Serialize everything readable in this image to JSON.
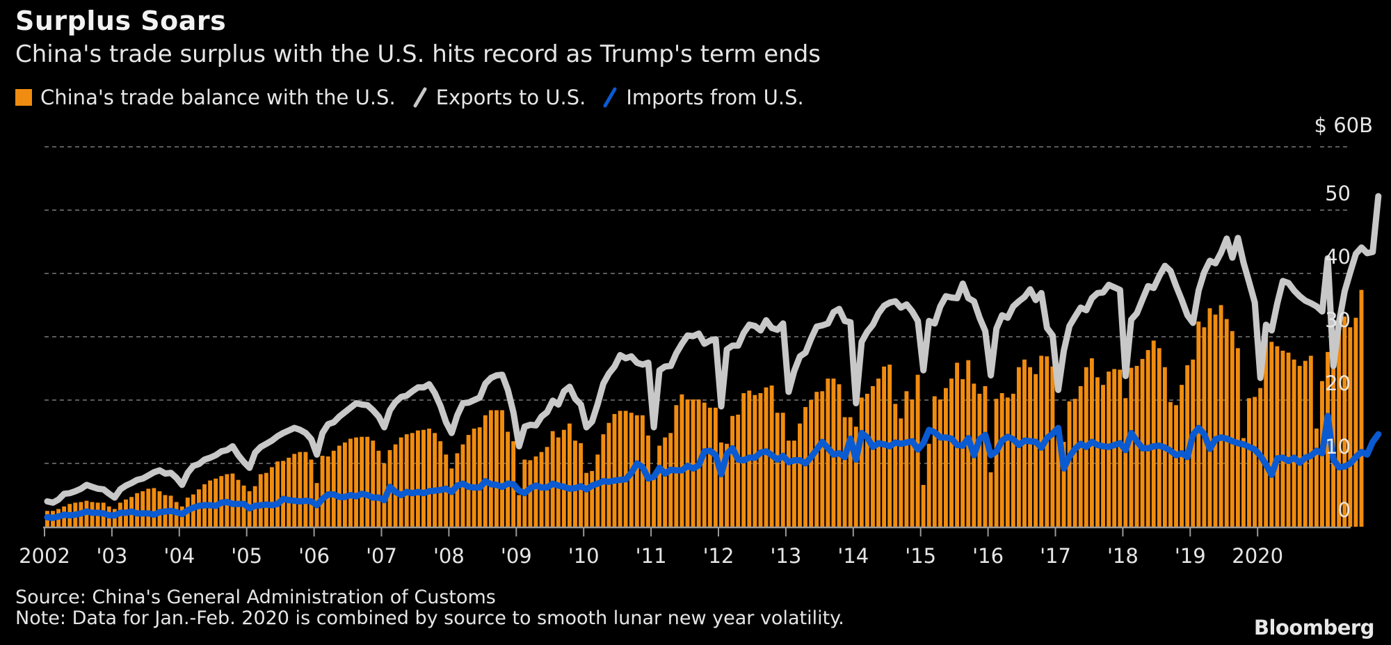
{
  "title": "Surplus Soars",
  "subtitle": "China's trade surplus with the U.S. hits record as Trump's term ends",
  "legend": [
    {
      "label": "China's trade balance with the U.S.",
      "kind": "bar",
      "color": "#f08c10"
    },
    {
      "label": "Exports to U.S.",
      "kind": "line",
      "color": "#c8c8c8"
    },
    {
      "label": "Imports from U.S.",
      "kind": "line",
      "color": "#0a5ad2"
    }
  ],
  "unit_label": "$ 60B",
  "source": "Source: China's General Administration of Customs",
  "note": "Note: Data for Jan.-Feb. 2020 is combined by source to smooth lunar new year volatility.",
  "logo": "Bloomberg",
  "chart_data": {
    "type": "bar",
    "title": "Surplus Soars",
    "subtitle": "China's trade surplus with the U.S. hits record as Trump's term ends",
    "xlabel": "",
    "ylabel": "$B",
    "ylim": [
      0,
      60
    ],
    "yticks": [
      0,
      10,
      20,
      30,
      40,
      50,
      60
    ],
    "ytick_labels": [
      "0",
      "10",
      "20",
      "30",
      "40",
      "50",
      "$ 60B"
    ],
    "grid": true,
    "legend_position": "top-left",
    "x_start": "2002-01",
    "x_end": "2020-11",
    "frequency": "monthly",
    "xtick_labels": [
      "2002",
      "'03",
      "'04",
      "'05",
      "'06",
      "'07",
      "'08",
      "'09",
      "'10",
      "'11",
      "'12",
      "'13",
      "'14",
      "'15",
      "'16",
      "'17",
      "'18",
      "'19",
      "2020"
    ],
    "series": [
      {
        "name": "China's trade balance with the U.S.",
        "type": "bar",
        "color": "#f08c10",
        "values": [
          2.5,
          2.5,
          2.8,
          3.2,
          3.6,
          3.8,
          3.9,
          4.1,
          3.9,
          3.8,
          3.8,
          3.2,
          2.8,
          3.8,
          4.3,
          4.7,
          5.3,
          5.6,
          6.0,
          6.1,
          5.6,
          5.0,
          4.9,
          3.9,
          3.2,
          4.6,
          5.1,
          5.9,
          6.7,
          7.3,
          7.6,
          8.0,
          8.3,
          8.4,
          7.4,
          6.5,
          5.6,
          6.4,
          8.3,
          8.5,
          9.4,
          10.3,
          10.4,
          10.9,
          11.5,
          11.8,
          11.8,
          10.6,
          6.9,
          11.2,
          11.1,
          12.0,
          12.8,
          13.3,
          13.9,
          14.1,
          14.2,
          14.2,
          13.6,
          12.0,
          10.0,
          12.1,
          13.0,
          14.1,
          14.6,
          14.8,
          15.2,
          15.3,
          15.5,
          14.8,
          13.5,
          11.4,
          9.2,
          11.6,
          13.0,
          14.5,
          15.5,
          15.7,
          17.6,
          18.4,
          18.4,
          18.4,
          15.0,
          13.5,
          5.0,
          10.6,
          10.5,
          11.1,
          11.8,
          12.6,
          15.1,
          14.1,
          15.3,
          16.3,
          13.6,
          13.2,
          8.5,
          8.8,
          11.4,
          14.6,
          16.4,
          17.8,
          18.3,
          18.3,
          18.0,
          17.6,
          17.6,
          14.4,
          8.0,
          12.8,
          14.1,
          14.8,
          19.2,
          20.9,
          20.1,
          20.1,
          20.1,
          19.6,
          18.8,
          18.8,
          13.3,
          13.1,
          17.5,
          17.7,
          21.1,
          21.5,
          20.8,
          21.1,
          22.0,
          22.3,
          18.0,
          18.0,
          13.6,
          13.6,
          16.3,
          18.9,
          20.0,
          21.3,
          21.4,
          23.4,
          23.4,
          22.5,
          17.3,
          17.3,
          15.8,
          20.4,
          21.0,
          22.2,
          23.4,
          25.3,
          25.6,
          19.4,
          17.1,
          21.4,
          20.1,
          24.0,
          6.6,
          13.1,
          20.6,
          20.1,
          21.9,
          23.4,
          25.9,
          23.3,
          26.3,
          22.6,
          21.0,
          22.2,
          8.6,
          20.2,
          21.1,
          20.4,
          21.0,
          25.2,
          26.4,
          25.2,
          24.1,
          27.0,
          26.9,
          25.3,
          14.2,
          13.4,
          19.8,
          20.2,
          22.2,
          25.2,
          26.6,
          23.6,
          22.4,
          24.5,
          24.9,
          24.8,
          20.3,
          25.1,
          25.4,
          26.5,
          27.9,
          29.4,
          28.2,
          25.2,
          19.7,
          19.2,
          22.4,
          25.5,
          26.4,
          32.4,
          31.5,
          34.5,
          33.5,
          35.0,
          32.8,
          30.9,
          28.2,
          14.0,
          20.3,
          20.5,
          21.9,
          30.5,
          29.2,
          28.5,
          27.8,
          27.5,
          26.4,
          25.4,
          26.2,
          27.0,
          15.5,
          23.0,
          27.6,
          29.5,
          31.2,
          33.2,
          31.5,
          33.0,
          37.4
        ]
      },
      {
        "name": "Exports to U.S.",
        "type": "line",
        "color": "#c8c8c8",
        "values": [
          4.0,
          3.8,
          4.3,
          5.2,
          5.3,
          5.6,
          6.0,
          6.6,
          6.3,
          6.0,
          5.9,
          5.2,
          4.6,
          5.9,
          6.5,
          6.9,
          7.4,
          7.6,
          8.1,
          8.6,
          8.9,
          8.4,
          8.5,
          7.7,
          6.6,
          8.5,
          9.6,
          9.9,
          10.6,
          10.9,
          11.3,
          11.9,
          12.1,
          12.7,
          11.3,
          10.2,
          9.3,
          11.7,
          12.6,
          13.1,
          13.6,
          14.3,
          14.8,
          15.2,
          15.6,
          15.3,
          14.8,
          13.8,
          11.4,
          14.8,
          16.2,
          16.5,
          17.4,
          18.1,
          18.8,
          19.5,
          19.3,
          19.2,
          18.4,
          17.4,
          15.7,
          18.4,
          19.7,
          20.5,
          20.7,
          21.4,
          22.0,
          22.0,
          22.5,
          21.1,
          19.1,
          16.5,
          14.8,
          17.6,
          19.5,
          19.6,
          20.0,
          20.4,
          22.6,
          23.5,
          23.9,
          24.0,
          21.6,
          18.0,
          12.7,
          15.8,
          16.1,
          16.0,
          17.4,
          18.1,
          19.9,
          19.3,
          21.4,
          22.1,
          20.2,
          19.3,
          15.7,
          16.6,
          19.4,
          22.6,
          24.2,
          25.3,
          27.1,
          26.6,
          26.9,
          25.9,
          25.6,
          25.9,
          15.7,
          24.7,
          25.3,
          25.4,
          27.4,
          28.9,
          30.2,
          30.1,
          30.5,
          28.9,
          29.4,
          29.6,
          19.0,
          28.0,
          28.6,
          28.6,
          30.6,
          31.9,
          31.7,
          31.0,
          32.6,
          31.4,
          31.1,
          32.1,
          21.3,
          24.6,
          26.9,
          27.5,
          29.7,
          31.6,
          31.8,
          32.1,
          33.9,
          34.4,
          32.5,
          32.3,
          19.5,
          29.2,
          30.8,
          31.9,
          33.7,
          34.9,
          35.4,
          35.6,
          34.6,
          35.1,
          34.0,
          32.5,
          24.7,
          32.5,
          32.1,
          34.8,
          36.4,
          36.2,
          36.1,
          38.4,
          36.1,
          35.6,
          33.0,
          30.9,
          23.9,
          31.3,
          33.4,
          33.0,
          34.8,
          35.6,
          36.3,
          37.5,
          35.8,
          36.9,
          31.4,
          30.2,
          21.6,
          27.8,
          31.7,
          33.2,
          34.6,
          34.2,
          36.1,
          36.9,
          37.0,
          38.2,
          37.8,
          37.4,
          23.8,
          32.7,
          33.7,
          35.9,
          38.0,
          37.7,
          39.6,
          41.2,
          40.4,
          38.0,
          35.8,
          33.4,
          32.2,
          37.3,
          40.2,
          42.0,
          41.6,
          43.3,
          45.5,
          42.5,
          45.6,
          41.7,
          38.6,
          35.4,
          23.5,
          31.9,
          31.0,
          35.3,
          38.8,
          38.5,
          37.3,
          36.4,
          35.7,
          35.3,
          34.8,
          34.0,
          42.4,
          25.4,
          32.3,
          37.2,
          40.2,
          43.1,
          44.1,
          43.2,
          43.4,
          52.2
        ]
      },
      {
        "name": "Imports from U.S.",
        "type": "line",
        "color": "#0a5ad2",
        "values": [
          1.5,
          1.4,
          1.6,
          1.9,
          1.8,
          1.9,
          2.1,
          2.4,
          2.2,
          2.2,
          2.1,
          1.8,
          1.8,
          2.2,
          2.2,
          2.4,
          2.1,
          2.1,
          2.1,
          1.9,
          2.3,
          2.4,
          2.5,
          2.3,
          2.0,
          2.6,
          3.0,
          3.3,
          3.4,
          3.4,
          3.3,
          3.8,
          3.9,
          3.6,
          3.6,
          3.6,
          2.9,
          3.3,
          3.4,
          3.5,
          3.4,
          3.6,
          4.4,
          4.2,
          4.1,
          4.0,
          4.1,
          4.0,
          3.4,
          4.4,
          5.1,
          5.1,
          4.7,
          4.7,
          5.0,
          4.8,
          5.2,
          5.0,
          4.6,
          4.6,
          4.2,
          6.3,
          5.5,
          5.0,
          5.5,
          5.3,
          5.5,
          5.3,
          5.6,
          5.7,
          5.8,
          6.0,
          5.5,
          6.5,
          6.8,
          6.3,
          6.2,
          6.2,
          7.2,
          6.7,
          6.6,
          6.3,
          6.8,
          6.7,
          5.7,
          5.3,
          6.1,
          6.5,
          6.2,
          6.2,
          6.8,
          6.5,
          6.3,
          6.0,
          6.1,
          6.4,
          5.9,
          6.5,
          6.8,
          7.2,
          7.1,
          7.3,
          7.4,
          7.5,
          8.5,
          10.0,
          9.4,
          7.6,
          7.9,
          9.3,
          8.4,
          9.0,
          8.9,
          8.9,
          9.6,
          9.2,
          9.7,
          11.9,
          12.0,
          11.3,
          8.3,
          11.5,
          12.4,
          10.6,
          10.5,
          10.9,
          10.9,
          11.7,
          11.9,
          11.3,
          10.6,
          11.2,
          10.2,
          10.5,
          10.5,
          10.0,
          11.0,
          12.2,
          13.4,
          12.4,
          11.4,
          11.6,
          11.0,
          13.9,
          10.6,
          14.8,
          14.1,
          12.6,
          13.2,
          13.0,
          12.7,
          13.3,
          13.1,
          13.3,
          13.5,
          12.2,
          13.2,
          15.3,
          14.9,
          14.1,
          14.1,
          13.9,
          12.9,
          12.8,
          14.0,
          11.3,
          13.8,
          14.5,
          11.3,
          11.9,
          13.6,
          14.2,
          13.8,
          12.9,
          13.6,
          13.5,
          13.4,
          12.5,
          14.0,
          14.7,
          15.6,
          9.2,
          11.1,
          12.3,
          13.1,
          12.6,
          13.4,
          12.9,
          12.7,
          12.6,
          12.9,
          13.2,
          12.1,
          14.8,
          13.5,
          12.4,
          12.4,
          12.7,
          12.8,
          12.5,
          12.0,
          11.3,
          11.6,
          11.0,
          14.5,
          15.6,
          14.6,
          12.3,
          13.8,
          14.1,
          13.9,
          13.5,
          13.2,
          13.0,
          12.6,
          12.2,
          11.2,
          9.8,
          8.2,
          10.8,
          10.9,
          10.4,
          10.9,
          10.1,
          10.9,
          11.2,
          12.0,
          11.6,
          17.5,
          10.6,
          9.4,
          9.5,
          10.0,
          11.0,
          11.8,
          11.4,
          13.4,
          14.6
        ]
      }
    ]
  }
}
